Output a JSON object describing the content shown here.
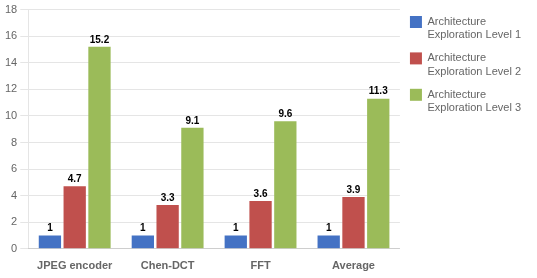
{
  "chart_data": {
    "type": "bar",
    "categories": [
      "JPEG encoder",
      "Chen-DCT",
      "FFT",
      "Average"
    ],
    "series": [
      {
        "name": "Architecture\nExploration Level 1",
        "color": "#4472C4",
        "values": [
          1,
          1,
          1,
          1
        ]
      },
      {
        "name": "Architecture\nExploration Level 2",
        "color": "#C0504D",
        "values": [
          4.7,
          3.3,
          3.6,
          3.9
        ]
      },
      {
        "name": "Architecture\nExploration Level 3",
        "color": "#9BBB59",
        "values": [
          15.2,
          9.1,
          9.6,
          11.3
        ]
      }
    ],
    "ylim": [
      0,
      18
    ],
    "yticks": [
      0,
      2,
      4,
      6,
      8,
      10,
      12,
      14,
      16,
      18
    ],
    "grid": true,
    "legend": "right",
    "data_labels": true
  }
}
